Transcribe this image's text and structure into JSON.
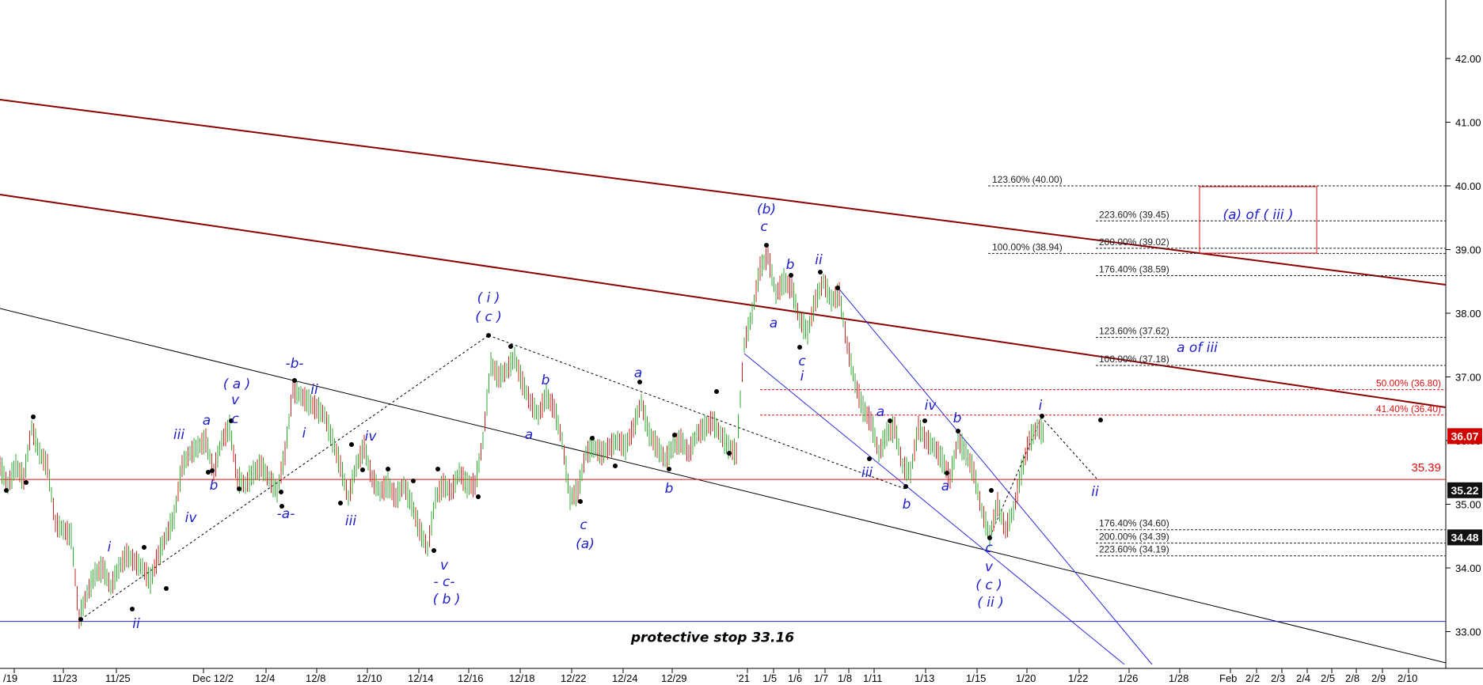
{
  "chart_data": {
    "type": "line",
    "ylim": [
      32.5,
      43.0
    ],
    "y_ticks": [
      "42.00",
      "41.00",
      "40.00",
      "39.00",
      "38.00",
      "37.00",
      "36.00",
      "35.00",
      "34.00",
      "33.00"
    ],
    "x_ticks": [
      "/19",
      "11/23",
      "11/25",
      "Dec 12/2",
      "12/4",
      "12/8",
      "12/10",
      "12/14",
      "12/16",
      "12/18",
      "12/22",
      "12/24",
      "12/29",
      "'21",
      "1/5",
      "1/6",
      "1/7",
      "1/8",
      "1/11",
      "1/13",
      "1/15",
      "1/20",
      "1/22",
      "1/26",
      "1/28",
      "Feb",
      "2/2",
      "2/3",
      "2/4",
      "2/5",
      "2/8",
      "2/9",
      "2/10"
    ],
    "price_badges": [
      {
        "label": "36.07",
        "value": 36.07,
        "bg": "#d40000",
        "fg": "#ffffff"
      },
      {
        "label": "35.22",
        "value": 35.22,
        "bg": "#111111",
        "fg": "#ffffff"
      },
      {
        "label": "34.48",
        "value": 34.48,
        "bg": "#111111",
        "fg": "#ffffff"
      }
    ],
    "horizontal_lines": [
      {
        "label": "35.39",
        "value": 35.39,
        "color": "#dd1111"
      },
      {
        "label": "protective stop 33.16",
        "value": 33.16,
        "color": "#2222dd"
      }
    ],
    "fib_levels": [
      {
        "label": "123.60% (40.00)",
        "value": 40.0,
        "color": "#222222"
      },
      {
        "label": "223.60% (39.45)",
        "value": 39.45,
        "color": "#222222"
      },
      {
        "label": "200.00% (39.02)",
        "value": 39.02,
        "color": "#222222"
      },
      {
        "label": "100.00% (38.94)",
        "value": 38.94,
        "color": "#222222"
      },
      {
        "label": "176.40% (38.59)",
        "value": 38.59,
        "color": "#222222"
      },
      {
        "label": "123.60% (37.62)",
        "value": 37.62,
        "color": "#222222"
      },
      {
        "label": "100.00% (37.18)",
        "value": 37.18,
        "color": "#222222"
      },
      {
        "label": "50.00% (36.80)",
        "value": 36.8,
        "color": "#dd1111"
      },
      {
        "label": "41.40% (36.40)",
        "value": 36.4,
        "color": "#dd1111"
      },
      {
        "label": "176.40% (34.60)",
        "value": 34.6,
        "color": "#222222"
      },
      {
        "label": "200.00% (34.39)",
        "value": 34.39,
        "color": "#222222"
      },
      {
        "label": "223.60% (34.19)",
        "value": 34.19,
        "color": "#222222"
      }
    ],
    "target_box_label": "(a) of ( iii )",
    "wave_labels": [
      "(b)",
      "c",
      "b",
      "ii",
      "a",
      "c",
      "i",
      "( i )",
      "( c )",
      "b",
      "a",
      "a",
      "b",
      "c",
      "(a)",
      "-b-",
      "ii",
      "( a )",
      "v",
      "c",
      "a",
      "iii",
      "b",
      "iv",
      "i",
      "ii",
      "i",
      "-a-",
      "iii",
      "iv",
      "v",
      "- c-",
      "( b )",
      "a of iii",
      "iv",
      "b",
      "a",
      "iii",
      "b",
      "a",
      "i",
      "ii",
      "c",
      "v",
      "( c )",
      "( ii )"
    ],
    "colors": {
      "channel": "#8b0000",
      "trend": "#000000",
      "wave": "#1d1dcc",
      "fib": "#222222",
      "fib_red": "#dd1111",
      "candle_up": "#33aa33",
      "candle_down": "#cc2222"
    }
  }
}
